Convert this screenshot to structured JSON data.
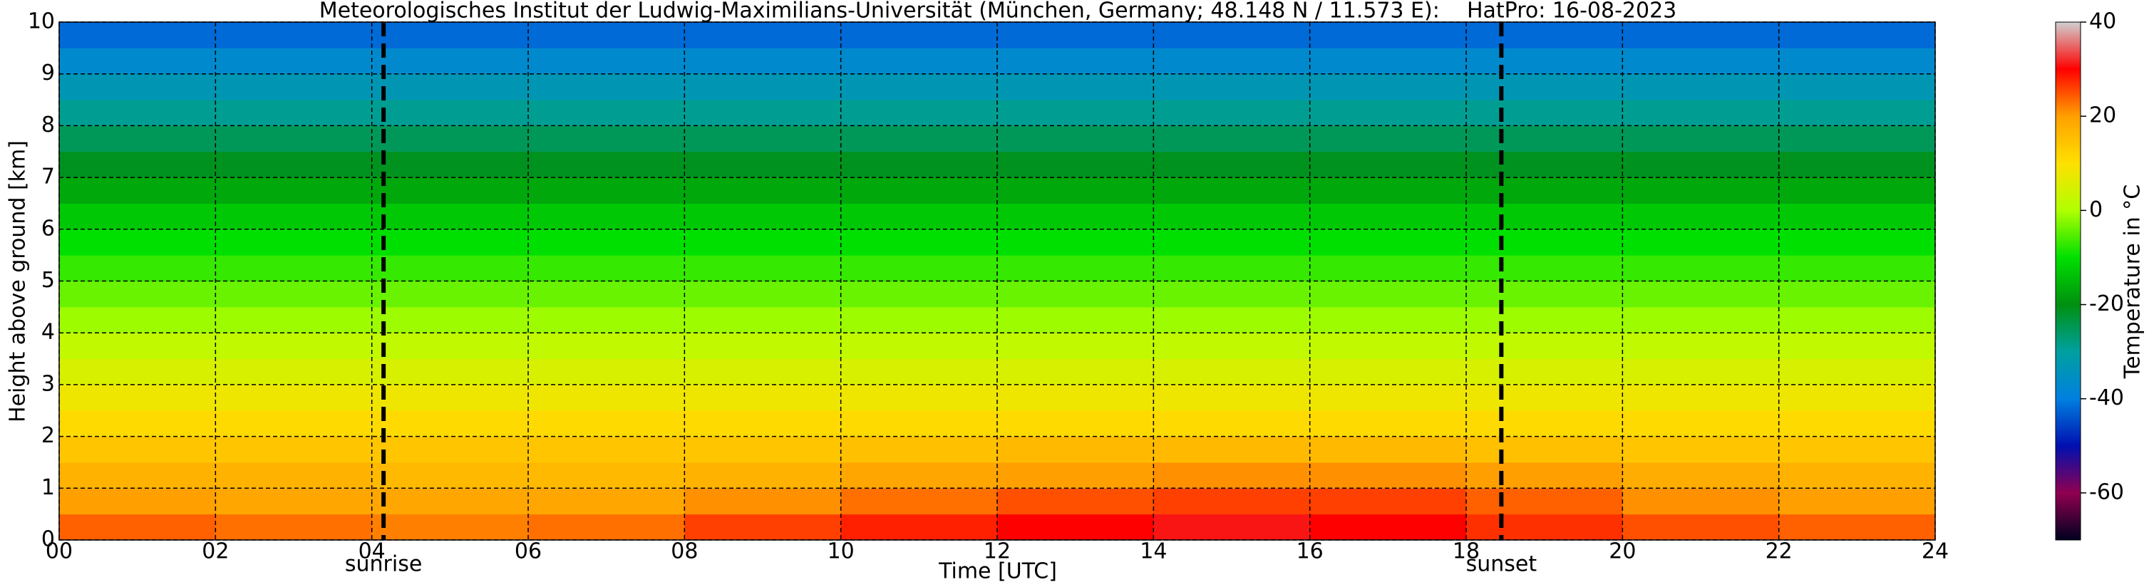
{
  "chart_data": {
    "type": "heatmap",
    "title": "Meteorologisches Institut der Ludwig-Maximilians-Universität (München, Germany; 48.148 N / 11.573 E):    HatPro: 16-08-2023",
    "x_label": "Time [UTC]",
    "y_label": "Height above ground [km]",
    "colorbar_label": "Temperature in °C",
    "x": [
      0,
      2,
      4,
      6,
      8,
      10,
      12,
      14,
      16,
      18,
      20,
      22,
      24
    ],
    "y": [
      0,
      0.5,
      1,
      1.5,
      2,
      2.5,
      3,
      3.5,
      4,
      4.5,
      5,
      5.5,
      6,
      6.5,
      7,
      7.5,
      8,
      8.5,
      9,
      9.5,
      10
    ],
    "z": [
      [
        24,
        23,
        22,
        23,
        26,
        28,
        30,
        31,
        30,
        27,
        25,
        24
      ],
      [
        20,
        19,
        19,
        19,
        21,
        23,
        25,
        26,
        26,
        24,
        21,
        20
      ],
      [
        17,
        17,
        16,
        16,
        17,
        19,
        20,
        21,
        21,
        20,
        18,
        17
      ],
      [
        14,
        14,
        14,
        14,
        14,
        15,
        16,
        16,
        16,
        15,
        14,
        14
      ],
      [
        11,
        11,
        11,
        11,
        11,
        11,
        11,
        11,
        11,
        11,
        11,
        11
      ],
      [
        8,
        8,
        8,
        8,
        8,
        8,
        8,
        8,
        8,
        8,
        8,
        8
      ],
      [
        5,
        5,
        5,
        5,
        5,
        5,
        5,
        5,
        5,
        5,
        5,
        5
      ],
      [
        2,
        2,
        2,
        2,
        2,
        2,
        2,
        2,
        2,
        2,
        2,
        2
      ],
      [
        -1,
        -1,
        -1,
        -1,
        -1,
        -1,
        -1,
        -1,
        -1,
        -1,
        -1,
        -1
      ],
      [
        -4,
        -4,
        -4,
        -4,
        -4,
        -4,
        -4,
        -4,
        -4,
        -4,
        -4,
        -4
      ],
      [
        -7,
        -7,
        -7,
        -7,
        -7,
        -7,
        -7,
        -7,
        -7,
        -7,
        -7,
        -7
      ],
      [
        -10,
        -10,
        -10,
        -10,
        -10,
        -10,
        -10,
        -10,
        -10,
        -10,
        -10,
        -10
      ],
      [
        -13,
        -13,
        -13,
        -13,
        -13,
        -13,
        -13,
        -13,
        -13,
        -13,
        -13,
        -13
      ],
      [
        -17,
        -17,
        -17,
        -17,
        -17,
        -17,
        -17,
        -17,
        -17,
        -17,
        -17,
        -17
      ],
      [
        -21,
        -21,
        -21,
        -21,
        -21,
        -21,
        -21,
        -21,
        -21,
        -21,
        -21,
        -21
      ],
      [
        -25,
        -25,
        -25,
        -25,
        -25,
        -25,
        -25,
        -25,
        -25,
        -25,
        -25,
        -25
      ],
      [
        -29,
        -29,
        -29,
        -29,
        -29,
        -29,
        -29,
        -29,
        -29,
        -29,
        -29,
        -29
      ],
      [
        -33,
        -33,
        -33,
        -33,
        -33,
        -33,
        -33,
        -33,
        -33,
        -33,
        -33,
        -33
      ],
      [
        -37,
        -37,
        -37,
        -37,
        -37,
        -37,
        -37,
        -37,
        -37,
        -37,
        -37,
        -37
      ],
      [
        -42,
        -42,
        -42,
        -42,
        -42,
        -42,
        -42,
        -42,
        -42,
        -42,
        -42,
        -42
      ]
    ],
    "xlim": [
      0,
      24
    ],
    "ylim": [
      0,
      10
    ],
    "xticks": [
      {
        "value": 0,
        "label": "00"
      },
      {
        "value": 2,
        "label": "02"
      },
      {
        "value": 4,
        "label": "04"
      },
      {
        "value": 6,
        "label": "06"
      },
      {
        "value": 8,
        "label": "08"
      },
      10,
      12,
      14,
      16,
      18,
      20,
      22,
      24
    ],
    "yticks": [
      0,
      1,
      2,
      3,
      4,
      5,
      6,
      7,
      8,
      9,
      10
    ],
    "clim": [
      -70,
      40
    ],
    "cticks": [
      -60,
      -40,
      -20,
      0,
      20,
      40
    ],
    "colormap": [
      "#000020",
      "#900050",
      "#0010b0",
      "#0080e0",
      "#00a0a0",
      "#009010",
      "#00e000",
      "#b0ff00",
      "#ffe000",
      "#ffa000",
      "#ff0000",
      "#d0d0d0"
    ],
    "grid": true,
    "annotations": [
      {
        "x": 4.15,
        "label": "sunrise"
      },
      {
        "x": 18.45,
        "label": "sunset"
      }
    ]
  }
}
